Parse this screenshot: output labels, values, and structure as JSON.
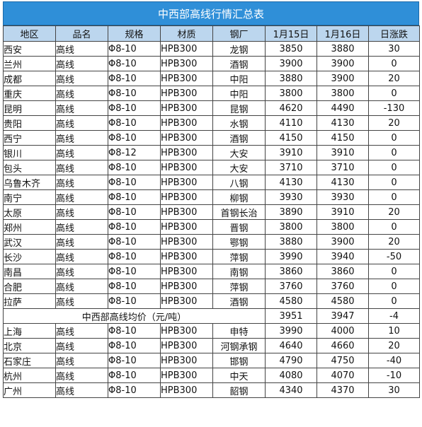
{
  "title": "中西部高线行情汇总表",
  "headers": [
    "地区",
    "品名",
    "规格",
    "材质",
    "钢厂",
    "1月15日",
    "1月16日",
    "日涨跌"
  ],
  "rows": [
    {
      "region": "西安",
      "product": "高线",
      "spec": "Φ8-10",
      "material": "HPB300",
      "mill": "龙钢",
      "d15": "3850",
      "d16": "3880",
      "change": "30",
      "trend": "up"
    },
    {
      "region": "兰州",
      "product": "高线",
      "spec": "Φ8-10",
      "material": "HPB300",
      "mill": "酒钢",
      "d15": "3900",
      "d16": "3900",
      "change": "0",
      "trend": "flat"
    },
    {
      "region": "成都",
      "product": "高线",
      "spec": "Φ8-10",
      "material": "HPB300",
      "mill": "中阳",
      "d15": "3880",
      "d16": "3900",
      "change": "20",
      "trend": "up"
    },
    {
      "region": "重庆",
      "product": "高线",
      "spec": "Φ8-10",
      "material": "HPB300",
      "mill": "中阳",
      "d15": "3800",
      "d16": "3800",
      "change": "0",
      "trend": "flat"
    },
    {
      "region": "昆明",
      "product": "高线",
      "spec": "Φ8-10",
      "material": "HPB300",
      "mill": "昆钢",
      "d15": "4620",
      "d16": "4490",
      "change": "-130",
      "trend": "down"
    },
    {
      "region": "贵阳",
      "product": "高线",
      "spec": "Φ8-10",
      "material": "HPB300",
      "mill": "水钢",
      "d15": "4110",
      "d16": "4130",
      "change": "20",
      "trend": "up"
    },
    {
      "region": "西宁",
      "product": "高线",
      "spec": "Φ8-10",
      "material": "HPB300",
      "mill": "酒钢",
      "d15": "4150",
      "d16": "4150",
      "change": "0",
      "trend": "flat"
    },
    {
      "region": "银川",
      "product": "高线",
      "spec": "Φ8-12",
      "material": "HPB300",
      "mill": "大安",
      "d15": "3910",
      "d16": "3910",
      "change": "0",
      "trend": "flat"
    },
    {
      "region": "包头",
      "product": "高线",
      "spec": "Φ8-10",
      "material": "HPB300",
      "mill": "大安",
      "d15": "3710",
      "d16": "3710",
      "change": "0",
      "trend": "flat"
    },
    {
      "region": "乌鲁木齐",
      "product": "高线",
      "spec": "Φ8-10",
      "material": "HPB300",
      "mill": "八钢",
      "d15": "4130",
      "d16": "4130",
      "change": "0",
      "trend": "flat"
    },
    {
      "region": "南宁",
      "product": "高线",
      "spec": "Φ8-10",
      "material": "HPB300",
      "mill": "柳钢",
      "d15": "3930",
      "d16": "3930",
      "change": "0",
      "trend": "flat"
    },
    {
      "region": "太原",
      "product": "高线",
      "spec": "Φ8-10",
      "material": "HPB300",
      "mill": "首钢长治",
      "d15": "3890",
      "d16": "3910",
      "change": "20",
      "trend": "up"
    },
    {
      "region": "郑州",
      "product": "高线",
      "spec": "Φ8-10",
      "material": "HPB300",
      "mill": "晋钢",
      "d15": "3800",
      "d16": "3800",
      "change": "0",
      "trend": "flat"
    },
    {
      "region": "武汉",
      "product": "高线",
      "spec": "Φ8-10",
      "material": "HPB300",
      "mill": "鄂钢",
      "d15": "3880",
      "d16": "3900",
      "change": "20",
      "trend": "up"
    },
    {
      "region": "长沙",
      "product": "高线",
      "spec": "Φ8-10",
      "material": "HPB300",
      "mill": "萍钢",
      "d15": "3990",
      "d16": "3940",
      "change": "-50",
      "trend": "down"
    },
    {
      "region": "南昌",
      "product": "高线",
      "spec": "Φ8-10",
      "material": "HPB300",
      "mill": "南钢",
      "d15": "3860",
      "d16": "3860",
      "change": "0",
      "trend": "flat"
    },
    {
      "region": "合肥",
      "product": "高线",
      "spec": "Φ8-10",
      "material": "HPB300",
      "mill": "萍钢",
      "d15": "3760",
      "d16": "3760",
      "change": "0",
      "trend": "flat"
    },
    {
      "region": "拉萨",
      "product": "高线",
      "spec": "Φ8-10",
      "material": "HPB300",
      "mill": "酒钢",
      "d15": "4580",
      "d16": "4580",
      "change": "0",
      "trend": "flat"
    }
  ],
  "average": {
    "label": "中西部高线均价（元/吨）",
    "d15": "3951",
    "d16": "3947",
    "change": "-4",
    "trend": "down"
  },
  "rows2": [
    {
      "region": "上海",
      "product": "高线",
      "spec": "Φ8-10",
      "material": "HPB300",
      "mill": "申特",
      "d15": "3990",
      "d16": "4000",
      "change": "10",
      "trend": "up"
    },
    {
      "region": "北京",
      "product": "高线",
      "spec": "Φ8-10",
      "material": "HPB300",
      "mill": "河钢承钢",
      "d15": "4640",
      "d16": "4660",
      "change": "20",
      "trend": "up"
    },
    {
      "region": "石家庄",
      "product": "高线",
      "spec": "Φ8-10",
      "material": "HPB300",
      "mill": "邯钢",
      "d15": "4790",
      "d16": "4750",
      "change": "-40",
      "trend": "down"
    },
    {
      "region": "杭州",
      "product": "高线",
      "spec": "Φ8-10",
      "material": "HPB300",
      "mill": "中天",
      "d15": "4080",
      "d16": "4070",
      "change": "-10",
      "trend": "down"
    },
    {
      "region": "广州",
      "product": "高线",
      "spec": "Φ8-10",
      "material": "HPB300",
      "mill": "韶钢",
      "d15": "4340",
      "d16": "4370",
      "change": "30",
      "trend": "up"
    }
  ],
  "colors": {
    "header_bg": "#2f8fd8",
    "col_header_bg": "#bcd6ee",
    "up": "#e0141e",
    "down": "#1a9a2e"
  }
}
